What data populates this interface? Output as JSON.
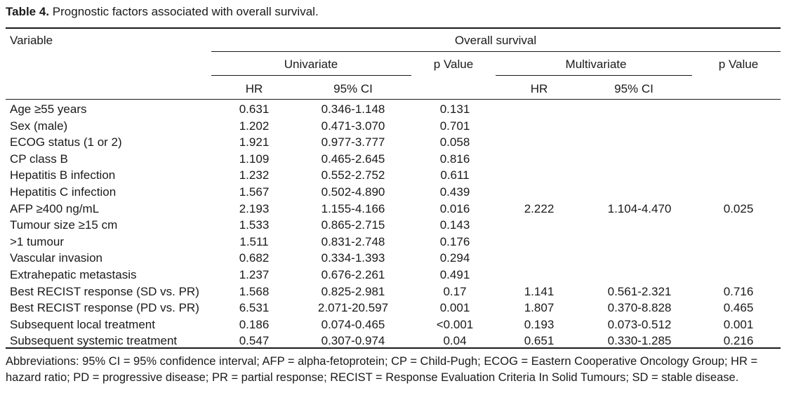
{
  "caption": {
    "label": "Table 4.",
    "text": "Prognostic factors associated with overall survival."
  },
  "header": {
    "variable": "Variable",
    "overall_survival": "Overall survival",
    "univariate": "Univariate",
    "multivariate": "Multivariate",
    "p_value": "p Value",
    "hr": "HR",
    "ci": "95% CI"
  },
  "rows": [
    {
      "variable": "Age ≥55 years",
      "uni_hr": "0.631",
      "uni_ci": "0.346-1.148",
      "uni_p": "0.131",
      "multi_hr": "",
      "multi_ci": "",
      "multi_p": ""
    },
    {
      "variable": "Sex (male)",
      "uni_hr": "1.202",
      "uni_ci": "0.471-3.070",
      "uni_p": "0.701",
      "multi_hr": "",
      "multi_ci": "",
      "multi_p": ""
    },
    {
      "variable": "ECOG status (1 or 2)",
      "uni_hr": "1.921",
      "uni_ci": "0.977-3.777",
      "uni_p": "0.058",
      "multi_hr": "",
      "multi_ci": "",
      "multi_p": ""
    },
    {
      "variable": "CP class B",
      "uni_hr": "1.109",
      "uni_ci": "0.465-2.645",
      "uni_p": "0.816",
      "multi_hr": "",
      "multi_ci": "",
      "multi_p": ""
    },
    {
      "variable": "Hepatitis B infection",
      "uni_hr": "1.232",
      "uni_ci": "0.552-2.752",
      "uni_p": "0.611",
      "multi_hr": "",
      "multi_ci": "",
      "multi_p": ""
    },
    {
      "variable": "Hepatitis C infection",
      "uni_hr": "1.567",
      "uni_ci": "0.502-4.890",
      "uni_p": "0.439",
      "multi_hr": "",
      "multi_ci": "",
      "multi_p": ""
    },
    {
      "variable": "AFP ≥400 ng/mL",
      "uni_hr": "2.193",
      "uni_ci": "1.155-4.166",
      "uni_p": "0.016",
      "multi_hr": "2.222",
      "multi_ci": "1.104-4.470",
      "multi_p": "0.025"
    },
    {
      "variable": "Tumour size ≥15 cm",
      "uni_hr": "1.533",
      "uni_ci": "0.865-2.715",
      "uni_p": "0.143",
      "multi_hr": "",
      "multi_ci": "",
      "multi_p": ""
    },
    {
      "variable": ">1 tumour",
      "uni_hr": "1.511",
      "uni_ci": "0.831-2.748",
      "uni_p": "0.176",
      "multi_hr": "",
      "multi_ci": "",
      "multi_p": ""
    },
    {
      "variable": "Vascular invasion",
      "uni_hr": "0.682",
      "uni_ci": "0.334-1.393",
      "uni_p": "0.294",
      "multi_hr": "",
      "multi_ci": "",
      "multi_p": ""
    },
    {
      "variable": "Extrahepatic metastasis",
      "uni_hr": "1.237",
      "uni_ci": "0.676-2.261",
      "uni_p": "0.491",
      "multi_hr": "",
      "multi_ci": "",
      "multi_p": ""
    },
    {
      "variable": "Best RECIST response (SD vs. PR)",
      "uni_hr": "1.568",
      "uni_ci": "0.825-2.981",
      "uni_p": "0.17",
      "multi_hr": "1.141",
      "multi_ci": "0.561-2.321",
      "multi_p": "0.716"
    },
    {
      "variable": "Best RECIST response (PD vs. PR)",
      "uni_hr": "6.531",
      "uni_ci": "2.071-20.597",
      "uni_p": "0.001",
      "multi_hr": "1.807",
      "multi_ci": "0.370-8.828",
      "multi_p": "0.465"
    },
    {
      "variable": "Subsequent local treatment",
      "uni_hr": "0.186",
      "uni_ci": "0.074-0.465",
      "uni_p": "<0.001",
      "multi_hr": "0.193",
      "multi_ci": "0.073-0.512",
      "multi_p": "0.001"
    },
    {
      "variable": "Subsequent systemic treatment",
      "uni_hr": "0.547",
      "uni_ci": "0.307-0.974",
      "uni_p": "0.04",
      "multi_hr": "0.651",
      "multi_ci": "0.330-1.285",
      "multi_p": "0.216"
    }
  ],
  "footnote": "Abbreviations: 95% CI = 95% confidence interval; AFP = alpha-fetoprotein; CP = Child-Pugh; ECOG = Eastern Cooperative Oncology Group; HR = hazard ratio; PD = progressive disease; PR = partial response; RECIST = Response Evaluation Criteria In Solid Tumours; SD = stable disease."
}
